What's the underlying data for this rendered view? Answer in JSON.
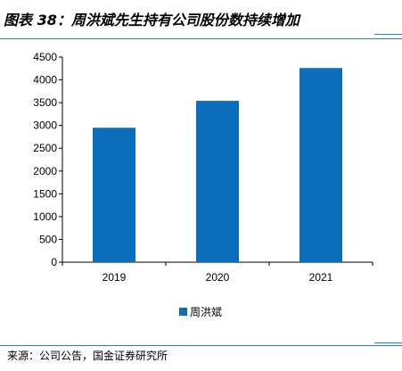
{
  "figure": {
    "title": "图表 38：周洪斌先生持有公司股份数持续增加",
    "source": "来源：公司公告，国金证券研究所"
  },
  "colors": {
    "bar": "#0a6ebd",
    "rule": "#1f86c8",
    "axis": "#000000"
  },
  "chart_data": {
    "type": "bar",
    "title": "",
    "xlabel": "",
    "ylabel": "",
    "categories": [
      "2019",
      "2020",
      "2021"
    ],
    "series": [
      {
        "name": "周洪斌",
        "values": [
          2950,
          3540,
          4260
        ]
      }
    ],
    "ylim": [
      0,
      4500
    ],
    "yticks": [
      0,
      500,
      1000,
      1500,
      2000,
      2500,
      3000,
      3500,
      4000,
      4500
    ],
    "grid": false,
    "legend_position": "bottom-center"
  }
}
